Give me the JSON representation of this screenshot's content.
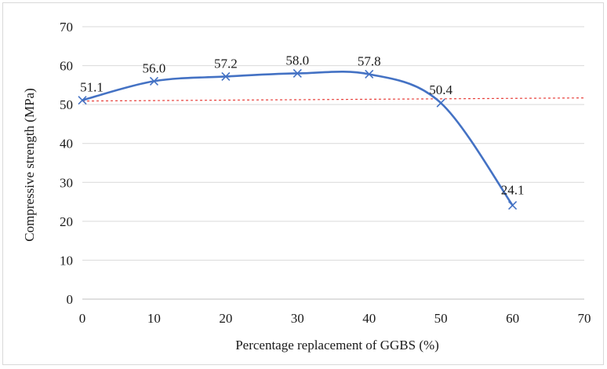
{
  "chart_data": {
    "type": "line",
    "title": "",
    "xlabel": "Percentage replacement of GGBS (%)",
    "ylabel": "Compressive strength (MPa)",
    "xlim": [
      0,
      70
    ],
    "ylim": [
      0,
      70
    ],
    "xticks": [
      0,
      10,
      20,
      30,
      40,
      50,
      60,
      70
    ],
    "yticks": [
      0,
      10,
      20,
      30,
      40,
      50,
      60,
      70
    ],
    "grid": "horizontal",
    "series": [
      {
        "color": "#4472C4",
        "marker": "x",
        "smooth": true,
        "x": [
          0,
          10,
          20,
          30,
          40,
          50,
          60
        ],
        "y": [
          51.1,
          56.0,
          57.2,
          58.0,
          57.8,
          50.4,
          24.1
        ],
        "labels": [
          "51.1",
          "56.0",
          "57.2",
          "58.0",
          "57.8",
          "50.4",
          "24.1"
        ]
      }
    ],
    "reference_line": {
      "style": "dashed",
      "color": "#e8413c",
      "x": [
        0,
        70
      ],
      "y": [
        50.9,
        51.7
      ]
    }
  }
}
